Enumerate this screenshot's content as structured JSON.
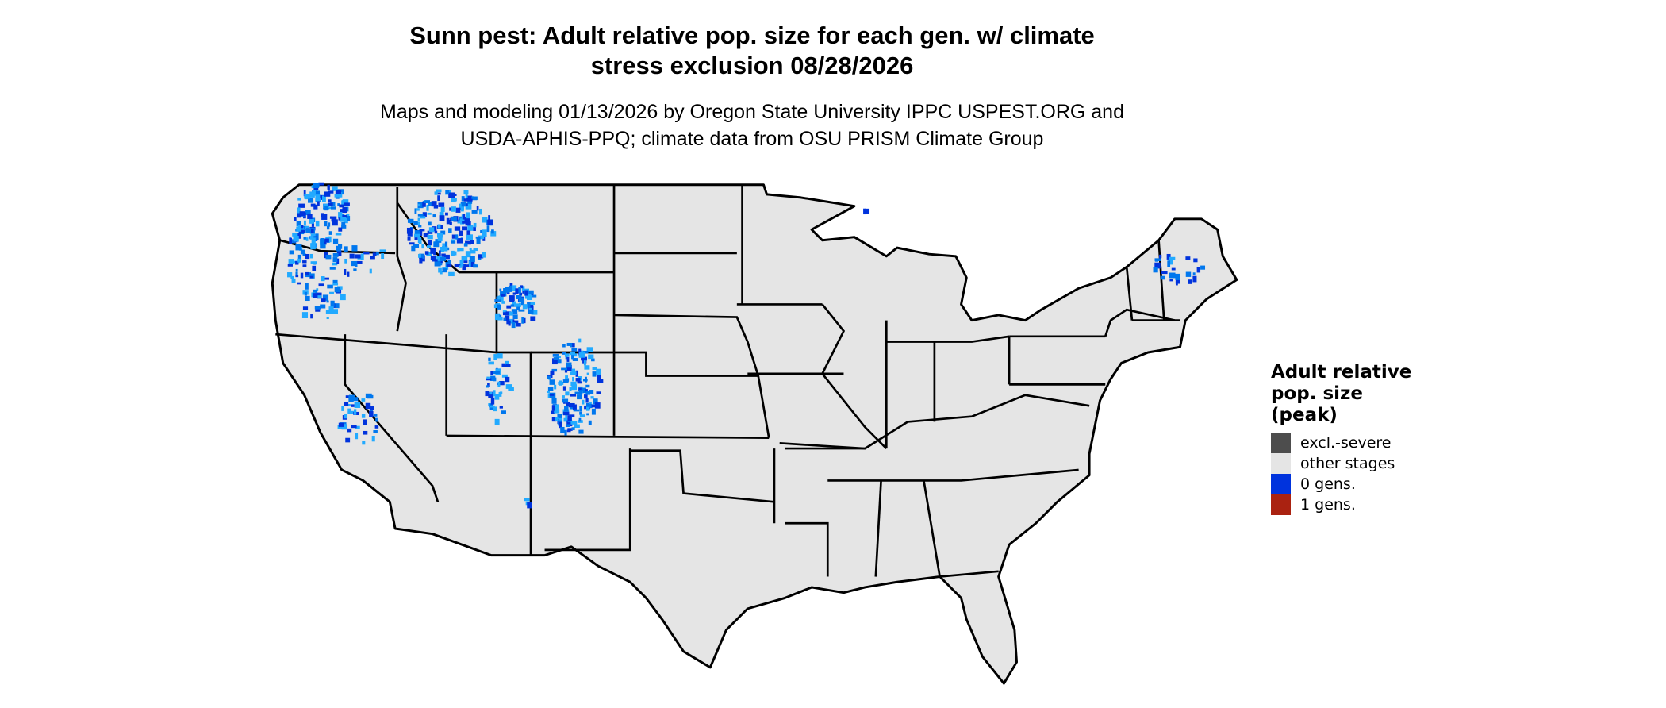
{
  "chart_data": {
    "type": "map",
    "title": "Sunn pest: Adult relative pop. size for each gen. w/ climate stress exclusion 08/28/2026",
    "title_lines": [
      "Sunn pest: Adult relative pop. size for each gen. w/ climate",
      "stress exclusion 08/28/2026"
    ],
    "subtitle_lines": [
      "Maps and modeling 01/13/2026 by Oregon State University IPPC USPEST.ORG and",
      "USDA-APHIS-PPQ; climate data from OSU PRISM Climate Group"
    ],
    "region": "Contiguous United States",
    "legend": {
      "title": "Adult relative pop. size (peak)",
      "title_lines": [
        "Adult relative",
        "pop. size",
        "(peak)"
      ],
      "placement": "right",
      "entries": [
        {
          "label": "excl.-severe",
          "color": "#4d4d4d"
        },
        {
          "label": "other stages",
          "color": "#e5e5e5"
        },
        {
          "label": "0 gens.",
          "color": "#0033dd"
        },
        {
          "label": "1 gens.",
          "color": "#aa2211"
        }
      ]
    },
    "land_color": "#e5e5e5",
    "border_color": "#000000",
    "highlight_colors": [
      "#0033dd",
      "#0077ee",
      "#22aaff"
    ]
  }
}
